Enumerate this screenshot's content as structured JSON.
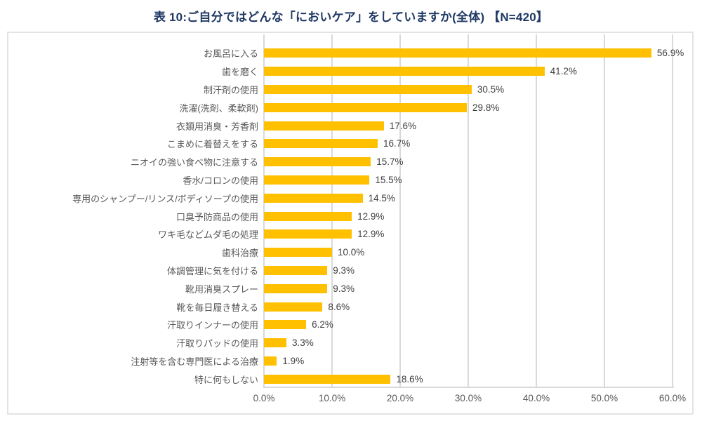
{
  "title": "表 10:ご自分ではどんな「においケア」をしていますか(全体) 【N=420】",
  "chart_data": {
    "type": "bar",
    "orientation": "horizontal",
    "title": "表 10:ご自分ではどんな「においケア」をしていますか(全体) 【N=420】",
    "categories": [
      "お風呂に入る",
      "歯を磨く",
      "制汗剤の使用",
      "洗濯(洗剤、柔軟剤)",
      "衣類用消臭・芳香剤",
      "こまめに着替えをする",
      "ニオイの強い食べ物に注意する",
      "香水/コロンの使用",
      "専用のシャンプー/リンス/ボディソープの使用",
      "口臭予防商品の使用",
      "ワキ毛などムダ毛の処理",
      "歯科治療",
      "体調管理に気を付ける",
      "靴用消臭スプレー",
      "靴を毎日履き替える",
      "汗取りインナーの使用",
      "汗取りパッドの使用",
      "注射等を含む専門医による治療",
      "特に何もしない"
    ],
    "values": [
      56.9,
      41.2,
      30.5,
      29.8,
      17.6,
      16.7,
      15.7,
      15.5,
      14.5,
      12.9,
      12.9,
      10.0,
      9.3,
      9.3,
      8.6,
      6.2,
      3.3,
      1.9,
      18.6
    ],
    "value_labels": [
      "56.9%",
      "41.2%",
      "30.5%",
      "29.8%",
      "17.6%",
      "16.7%",
      "15.7%",
      "15.5%",
      "14.5%",
      "12.9%",
      "12.9%",
      "10.0%",
      "9.3%",
      "9.3%",
      "8.6%",
      "6.2%",
      "3.3%",
      "1.9%",
      "18.6%"
    ],
    "x_ticks": [
      "0.0%",
      "10.0%",
      "20.0%",
      "30.0%",
      "40.0%",
      "50.0%",
      "60.0%"
    ],
    "xlim": [
      0,
      60
    ],
    "grid": true,
    "legend": "none",
    "bar_color": "#FFC000",
    "gridline_color": "#D9D9D9",
    "title_color": "#1F3864",
    "label_color": "#595959",
    "value_label_color": "#404040"
  }
}
